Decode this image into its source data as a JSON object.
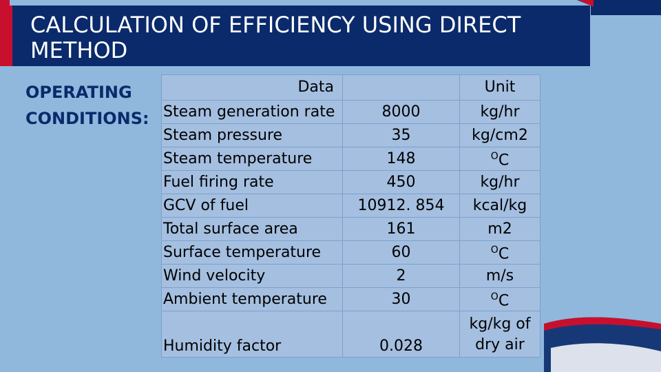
{
  "title": "CALCULATION OF EFFICIENCY USING DIRECT METHOD",
  "section_label_line1": "OPERATING",
  "section_label_line2": "CONDITIONS:",
  "table": {
    "header": {
      "data": "Data",
      "value": "",
      "unit": "Unit"
    },
    "rows": [
      {
        "param": "Steam generation rate",
        "value": "8000",
        "unit": "kg/hr"
      },
      {
        "param": "Steam pressure",
        "value": "35",
        "unit": "kg/cm2"
      },
      {
        "param": "Steam temperature",
        "value": "148",
        "unit_sup": "O",
        "unit": "C"
      },
      {
        "param": "Fuel firing rate",
        "value": "450",
        "unit": "kg/hr"
      },
      {
        "param": "GCV of fuel",
        "value": "10912. 854",
        "unit": "kcal/kg"
      },
      {
        "param": "Total surface area",
        "value": "161",
        "unit": "m2"
      },
      {
        "param": "Surface temperature",
        "value": "60",
        "unit_sup": "O",
        "unit": "C"
      },
      {
        "param": "Wind velocity",
        "value": "2",
        "unit": "m/s"
      },
      {
        "param": "Ambient temperature",
        "value": "30",
        "unit_sup": "O",
        "unit": "C"
      },
      {
        "param": "Humidity factor",
        "value": "0.028",
        "unit": "kg/kg of dry air"
      }
    ]
  },
  "colors": {
    "background": "#8fb8dc",
    "title_bar": "#0a2a6b",
    "accent_red": "#c8102e",
    "table_cell": "#a4bfe0"
  }
}
